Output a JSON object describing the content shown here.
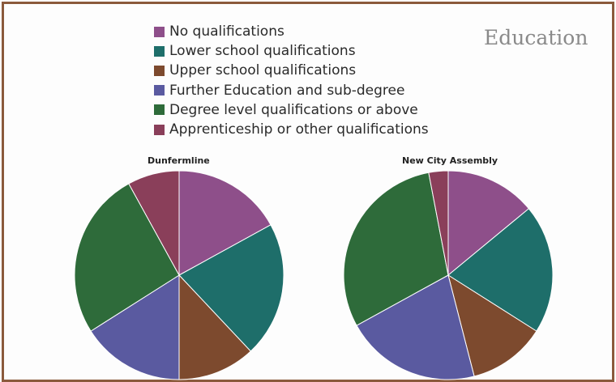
{
  "chart_data": {
    "type": "pie",
    "title": "Education",
    "legend": {
      "placement": "top-left",
      "entries": [
        {
          "label": "No qualifications",
          "color": "#8e4f8a"
        },
        {
          "label": "Lower school qualifications",
          "color": "#1e6e6a"
        },
        {
          "label": "Upper school qualifications",
          "color": "#7d4a2e"
        },
        {
          "label": "Further Education and sub-degree",
          "color": "#5a5aa0"
        },
        {
          "label": "Degree level qualifications or above",
          "color": "#2e6b3a"
        },
        {
          "label": "Apprenticeship or other qualifications",
          "color": "#8a3f5a"
        }
      ]
    },
    "pies": [
      {
        "label": "Dunfermline",
        "values": [
          17,
          21,
          12,
          16,
          26,
          8
        ]
      },
      {
        "label": "New City Assembly",
        "values": [
          14,
          20,
          12,
          21,
          30,
          3
        ]
      }
    ]
  }
}
